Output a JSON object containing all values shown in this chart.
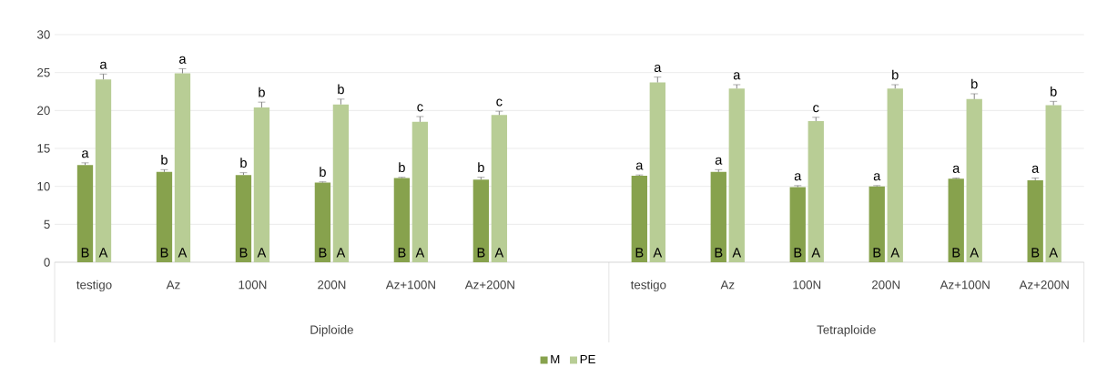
{
  "chart_data": {
    "type": "bar",
    "categories": [
      "testigo",
      "Az",
      "100N",
      "200N",
      "Az+100N",
      "Az+200N",
      null,
      "testigo",
      "Az",
      "100N",
      "200N",
      "Az+100N",
      "Az+200N"
    ],
    "series": [
      {
        "name": "M",
        "color": "#87a24d",
        "values": [
          12.8,
          11.9,
          11.5,
          10.5,
          11.1,
          10.9,
          null,
          11.4,
          11.9,
          9.9,
          10.0,
          11.0,
          10.8
        ],
        "errors": [
          0.3,
          0.3,
          0.3,
          0.1,
          0.1,
          0.3,
          null,
          0.1,
          0.3,
          0.2,
          0.1,
          0.1,
          0.3
        ],
        "value_labels": [
          "a",
          "b",
          "b",
          "b",
          "b",
          "b",
          null,
          "a",
          "a",
          "a",
          "a",
          "a",
          "a"
        ]
      },
      {
        "name": "PE",
        "color": "#b8cd95",
        "values": [
          24.1,
          24.9,
          20.4,
          20.8,
          18.5,
          19.4,
          null,
          23.7,
          22.9,
          18.6,
          22.9,
          21.5,
          20.7
        ],
        "errors": [
          0.7,
          0.6,
          0.7,
          0.7,
          0.7,
          0.5,
          null,
          0.7,
          0.5,
          0.5,
          0.5,
          0.7,
          0.5
        ],
        "value_labels": [
          "a",
          "a",
          "b",
          "b",
          "c",
          "c",
          null,
          "a",
          "a",
          "c",
          "b",
          "b",
          "b"
        ]
      }
    ],
    "ylim": [
      0,
      30
    ],
    "yticks": [
      0,
      5,
      10,
      15,
      20,
      25,
      30
    ],
    "grid": "y",
    "legend": "bottom",
    "annotations": [
      "Diploide",
      "Tetraploide",
      "B",
      "A",
      "B",
      "A",
      "B",
      "A",
      "B",
      "A",
      "B",
      "A",
      "B",
      "A",
      "B",
      "A",
      "B",
      "A",
      "B",
      "A",
      "B",
      "A",
      "B",
      "A",
      "B",
      "A"
    ]
  }
}
